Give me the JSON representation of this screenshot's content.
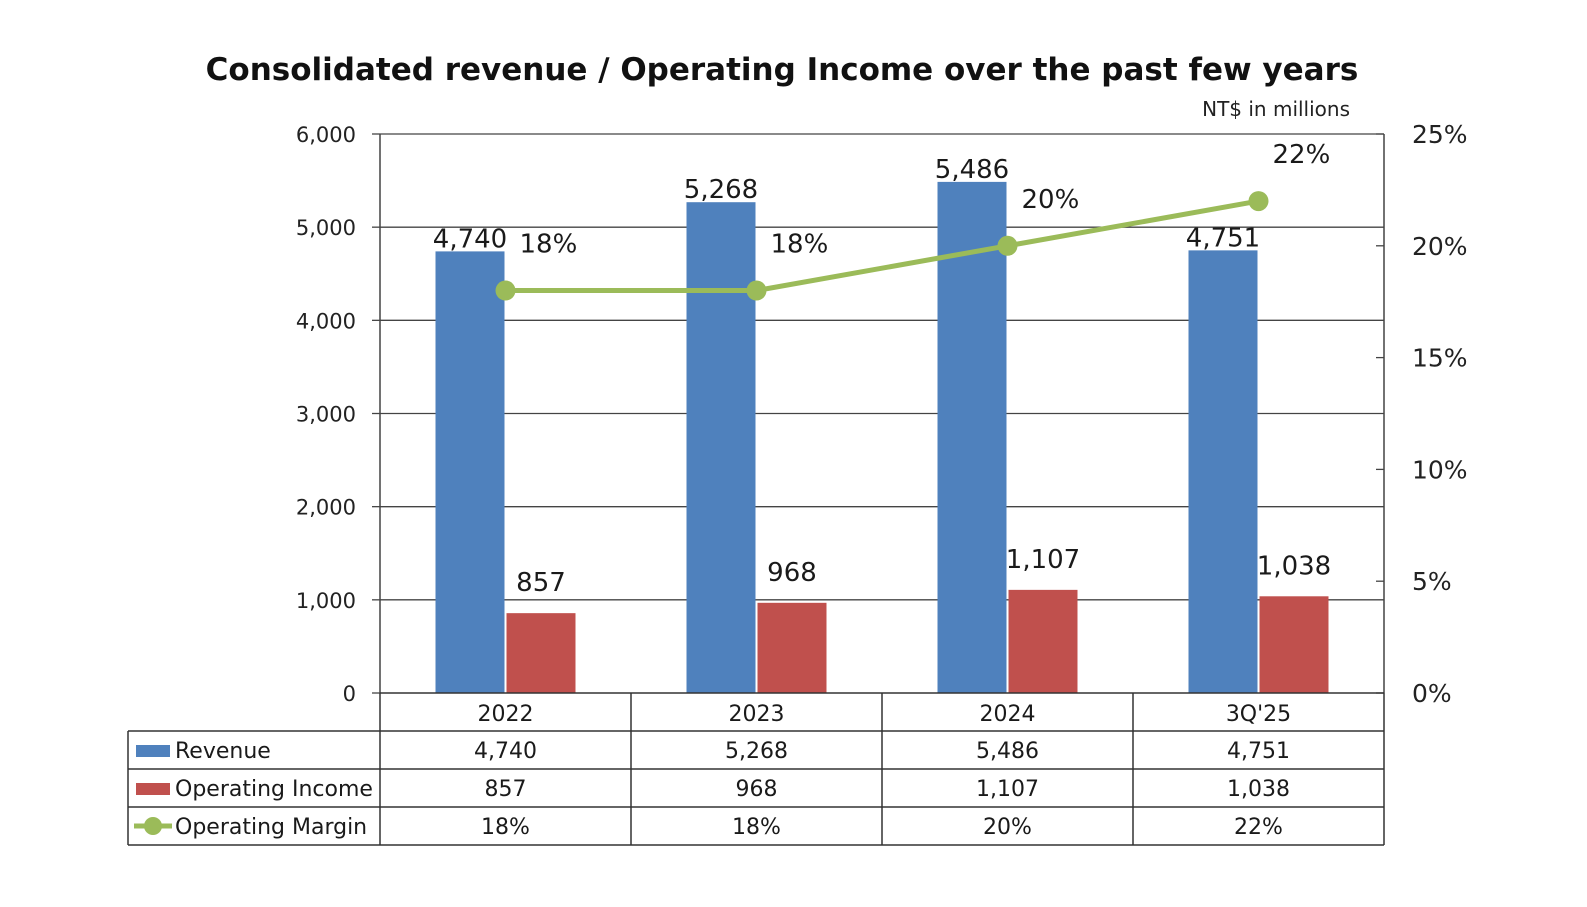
{
  "chart_data": {
    "type": "bar",
    "title": "Consolidated revenue / Operating Income over the past few years",
    "unit_note": "NT$ in millions",
    "categories": [
      "2022",
      "2023",
      "2024",
      "3Q'25"
    ],
    "series": [
      {
        "name": "Revenue",
        "type": "bar",
        "axis": "left",
        "color": "#4F81BD",
        "values": [
          4740,
          5268,
          5486,
          4751
        ],
        "labels": [
          "4,740",
          "5,268",
          "5,486",
          "4,751"
        ]
      },
      {
        "name": "Operating Income",
        "type": "bar",
        "axis": "left",
        "color": "#C0504D",
        "values": [
          857,
          968,
          1107,
          1038
        ],
        "labels": [
          "857",
          "968",
          "1,107",
          "1,038"
        ]
      },
      {
        "name": "Operating Margin",
        "type": "line",
        "axis": "right",
        "color": "#9BBB59",
        "values": [
          18,
          18,
          20,
          22
        ],
        "labels": [
          "18%",
          "18%",
          "20%",
          "22%"
        ]
      }
    ],
    "left_axis": {
      "ylim": [
        0,
        6000
      ],
      "ticks": [
        0,
        1000,
        2000,
        3000,
        4000,
        5000,
        6000
      ],
      "tick_labels": [
        "0",
        "1,000",
        "2,000",
        "3,000",
        "4,000",
        "5,000",
        "6,000"
      ]
    },
    "right_axis": {
      "ylim": [
        0,
        25
      ],
      "ticks": [
        0,
        5,
        10,
        15,
        20,
        25
      ],
      "tick_labels": [
        "0%",
        "5%",
        "10%",
        "15%",
        "20%",
        "25%"
      ]
    },
    "grid": true,
    "legend": "data-table-below",
    "data_table": {
      "rows": [
        {
          "name": "Revenue",
          "cells": [
            "4,740",
            "5,268",
            "5,486",
            "4,751"
          ]
        },
        {
          "name": "Operating Income",
          "cells": [
            "857",
            "968",
            "1,107",
            "1,038"
          ]
        },
        {
          "name": "Operating Margin",
          "cells": [
            "18%",
            "18%",
            "20%",
            "22%"
          ]
        }
      ]
    }
  }
}
